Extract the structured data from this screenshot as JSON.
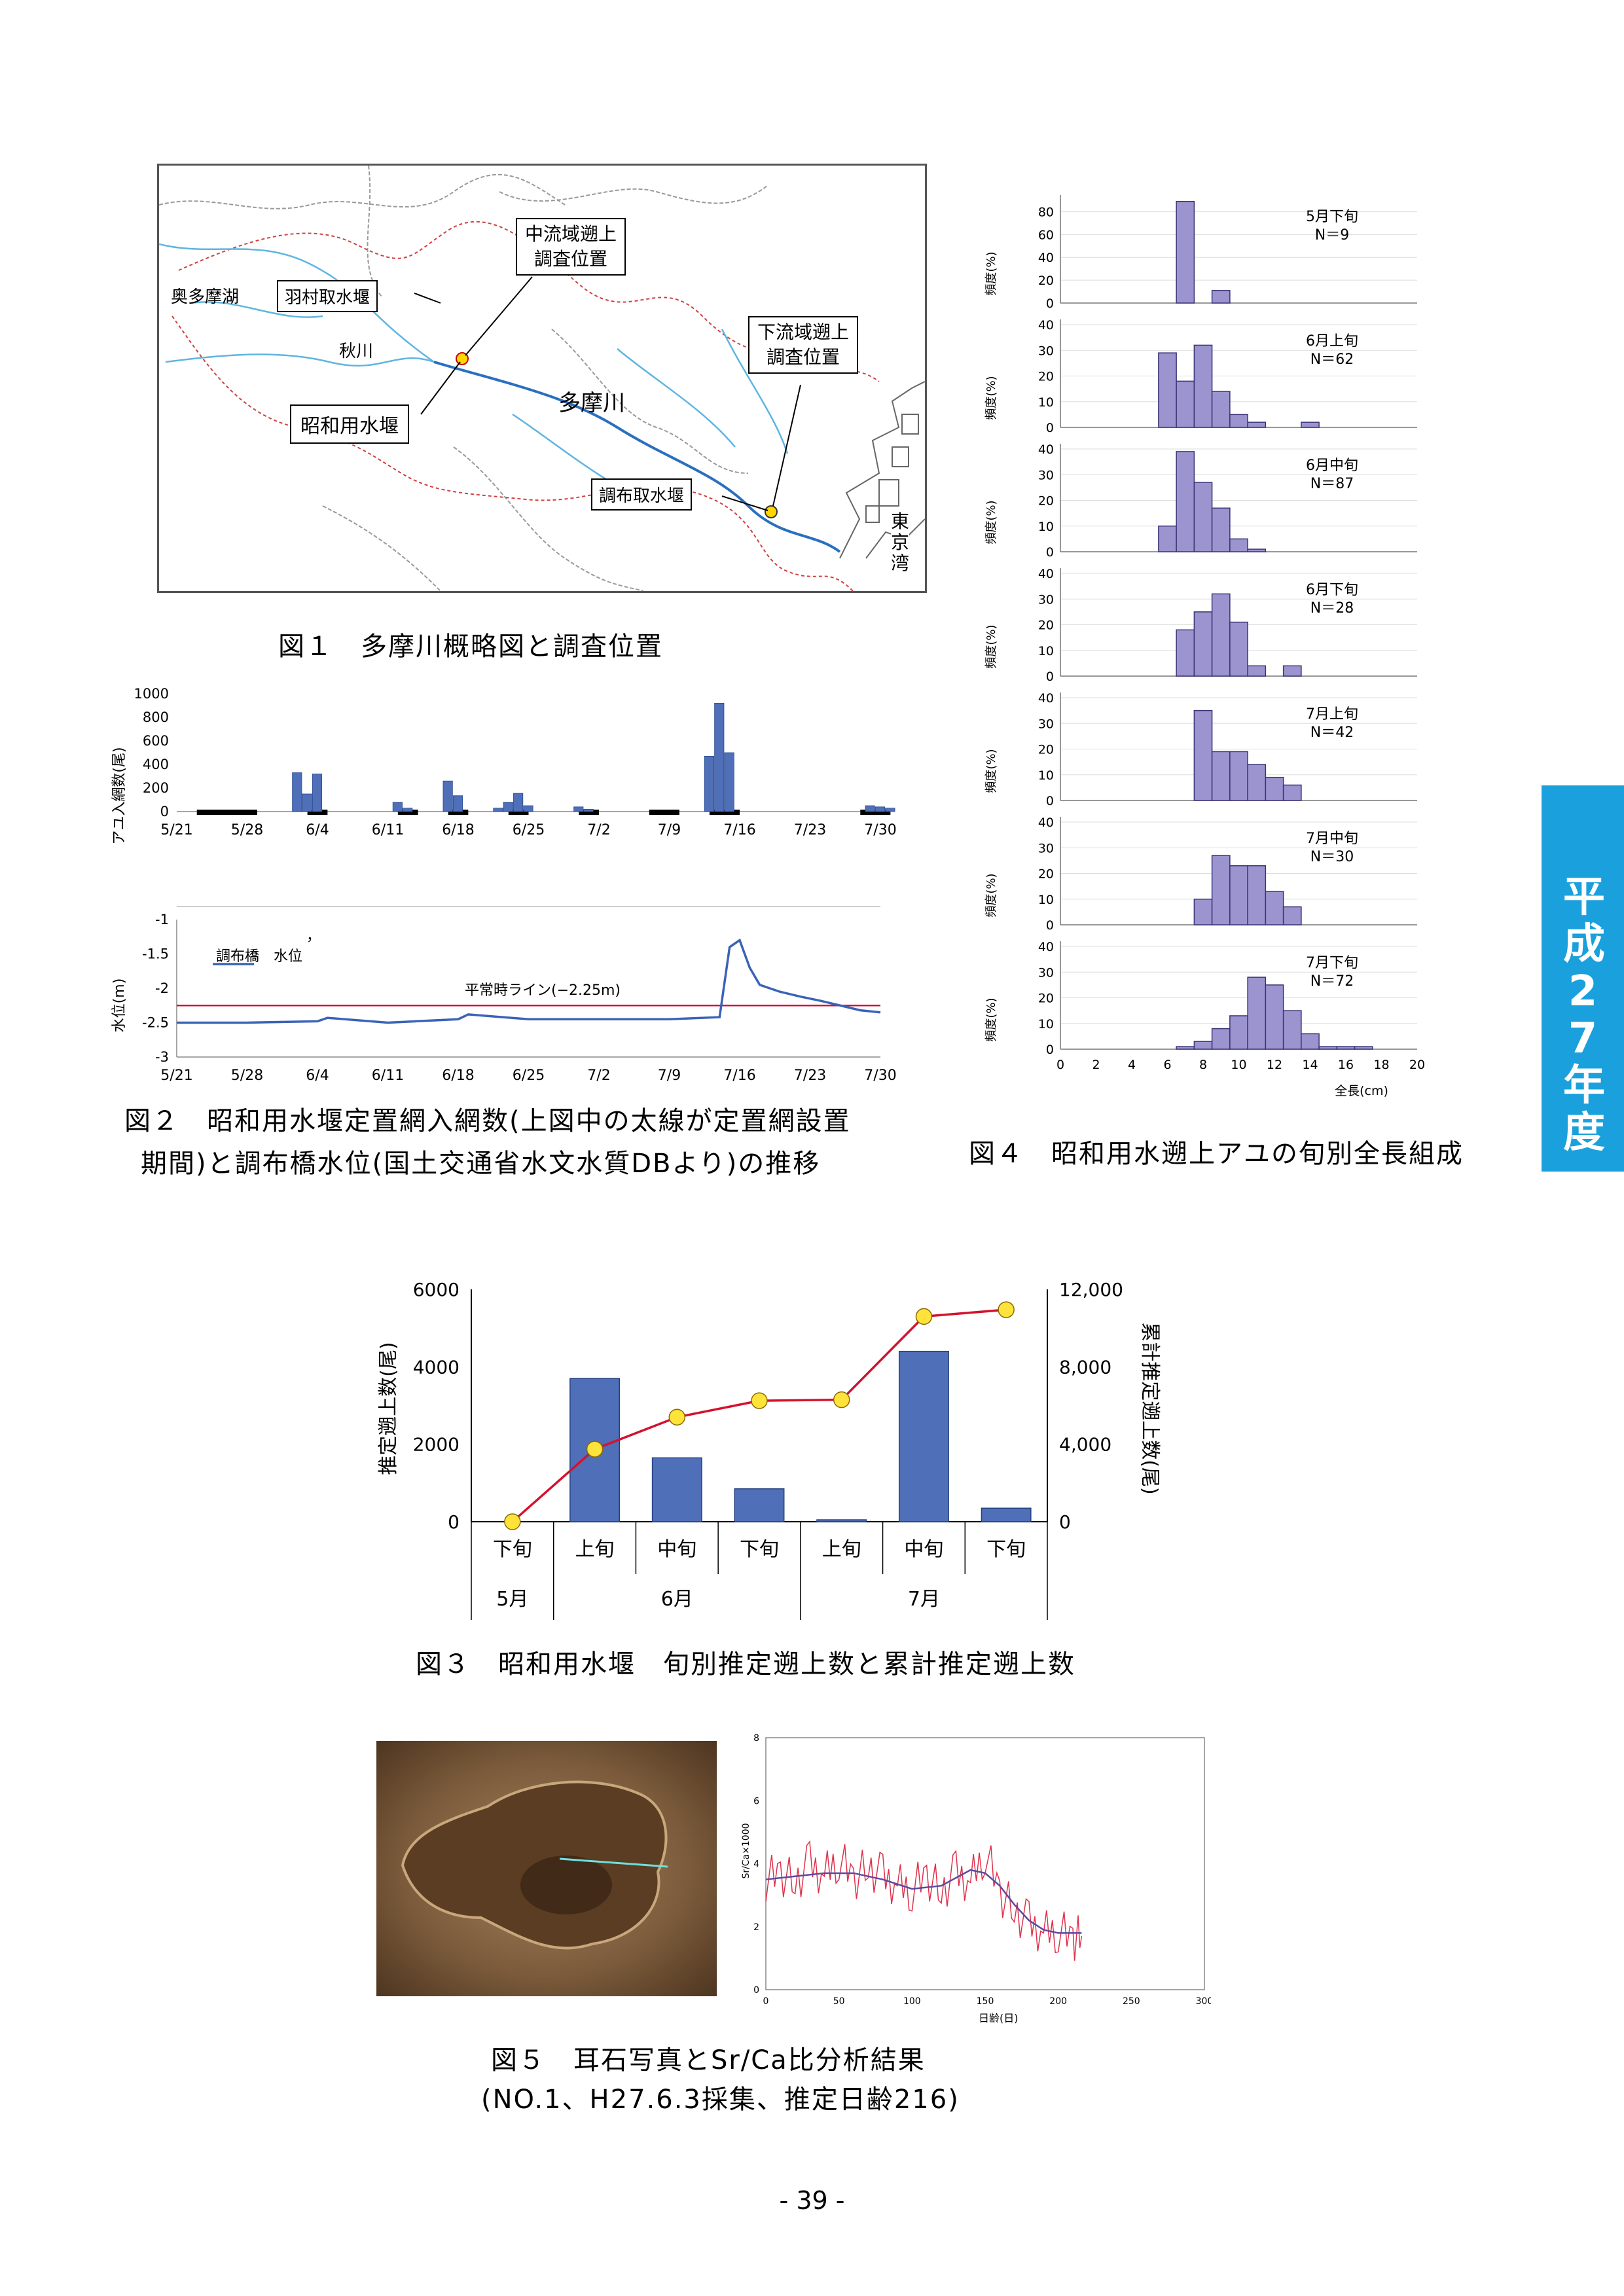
{
  "fig1": {
    "caption": "図１　多摩川概略図と調査位置",
    "labels": {
      "okutama": "奥多摩湖",
      "hamura": "羽村取水堰",
      "akigawa": "秋川",
      "chuuryuu": "中流域遡上",
      "chuuryuu2": "調査位置",
      "karyuu": "下流域遡上",
      "karyuu2": "調査位置",
      "showa": "昭和用水堰",
      "tamagawa": "多摩川",
      "chofu": "調布取水堰",
      "bay1": "東",
      "bay2": "京",
      "bay3": "湾"
    }
  },
  "fig2": {
    "caption_l1": "図２　昭和用水堰定置網入網数(上図中の太線が定置網設置",
    "caption_l2": "期間)と調布橋水位(国土交通省水文水質DBより)の推移",
    "top_ylabel": "アユ入網数(尾)",
    "bottom_ylabel": "水位(m)",
    "legend": "調布橋　水位",
    "normal_line": "平常時ライン(−2.25m)",
    "stray_mark": "，",
    "dates": [
      "5/21",
      "5/28",
      "6/4",
      "6/11",
      "6/18",
      "6/25",
      "7/2",
      "7/9",
      "7/16",
      "7/23",
      "7/30"
    ],
    "top_yticks": [
      "1000",
      "800",
      "600",
      "400",
      "200",
      "0"
    ],
    "bottom_yticks": [
      "-1",
      "-1.5",
      "-2",
      "-2.5",
      "-3"
    ]
  },
  "fig3": {
    "caption": "図３　昭和用水堰　旬別推定遡上数と累計推定遡上数",
    "ylabel_left": "推定遡上数(尾)",
    "ylabel_right": "累計推定遡上数(尾)",
    "left_ticks": [
      "6000",
      "4000",
      "2000",
      "0"
    ],
    "right_ticks": [
      "12,000",
      "8,000",
      "4,000",
      "0"
    ],
    "periods": [
      "下旬",
      "上旬",
      "中旬",
      "下旬",
      "上旬",
      "中旬",
      "下旬"
    ],
    "months": [
      "5月",
      "6月",
      "7月"
    ]
  },
  "fig4": {
    "caption": "図４　昭和用水遡上アユの旬別全長組成",
    "ylabel": "頻度(%)",
    "xlabel": "全長(cm)",
    "xticks": [
      "0",
      "2",
      "4",
      "6",
      "8",
      "10",
      "12",
      "14",
      "16",
      "18",
      "20"
    ],
    "panels": [
      {
        "title": "5月下旬",
        "n": "N＝9",
        "yticks": [
          "80",
          "60",
          "40",
          "20",
          "0"
        ]
      },
      {
        "title": "6月上旬",
        "n": "N＝62",
        "yticks": [
          "40",
          "30",
          "20",
          "10",
          "0"
        ]
      },
      {
        "title": "6月中旬",
        "n": "N＝87",
        "yticks": [
          "40",
          "30",
          "20",
          "10",
          "0"
        ]
      },
      {
        "title": "6月下旬",
        "n": "N＝28",
        "yticks": [
          "40",
          "30",
          "20",
          "10",
          "0"
        ]
      },
      {
        "title": "7月上旬",
        "n": "N＝42",
        "yticks": [
          "40",
          "30",
          "20",
          "10",
          "0"
        ]
      },
      {
        "title": "7月中旬",
        "n": "N＝30",
        "yticks": [
          "40",
          "30",
          "20",
          "10",
          "0"
        ]
      },
      {
        "title": "7月下旬",
        "n": "N＝72",
        "yticks": [
          "40",
          "30",
          "20",
          "10",
          "0"
        ]
      }
    ]
  },
  "fig5": {
    "caption_l1": "図５　耳石写真とSr/Ca比分析結果",
    "caption_l2": "(NO.1、H27.6.3採集、推定日齢216)",
    "ylabel": "Sr/Ca×1000",
    "xlabel": "日齢(日)",
    "xticks": [
      "0",
      "50",
      "100",
      "150",
      "200",
      "250",
      "300"
    ],
    "yticks": [
      "8",
      "6",
      "4",
      "2",
      "0"
    ]
  },
  "side_tab": "平成27年度",
  "page_number": "- 39 -",
  "chart_data": [
    {
      "type": "bar",
      "id": "fig2-top",
      "ylabel": "アユ入網数(尾)",
      "ylim": [
        0,
        1000
      ],
      "x_start": "5/21",
      "categories": [
        "6/2",
        "6/3",
        "6/4",
        "6/12",
        "6/13",
        "6/17",
        "6/18",
        "6/22",
        "6/23",
        "6/24",
        "6/25",
        "6/30",
        "7/1",
        "7/13",
        "7/14",
        "7/15",
        "7/29",
        "7/30",
        "7/31"
      ],
      "values": [
        330,
        150,
        320,
        80,
        30,
        260,
        135,
        30,
        80,
        155,
        50,
        40,
        20,
        470,
        920,
        500,
        50,
        40,
        30
      ],
      "net_periods": [
        [
          "5/23",
          "5/29"
        ],
        [
          "6/3",
          "6/5"
        ],
        [
          "6/12",
          "6/14"
        ],
        [
          "6/17",
          "6/19"
        ],
        [
          "6/23",
          "6/25"
        ],
        [
          "6/30",
          "7/2"
        ],
        [
          "7/7",
          "7/10"
        ],
        [
          "7/13",
          "7/16"
        ],
        [
          "7/28",
          "7/31"
        ]
      ]
    },
    {
      "type": "line",
      "id": "fig2-bottom",
      "ylabel": "水位(m)",
      "ylim": [
        -3,
        -1
      ],
      "series": [
        {
          "name": "調布橋　水位",
          "color": "#3a63b8",
          "x": [
            "5/21",
            "5/28",
            "6/4",
            "6/5",
            "6/11",
            "6/18",
            "6/19",
            "6/25",
            "7/2",
            "7/9",
            "7/14",
            "7/15",
            "7/16",
            "7/17",
            "7/18",
            "7/20",
            "7/22",
            "7/24",
            "7/26",
            "7/28",
            "7/30"
          ],
          "y": [
            -2.5,
            -2.5,
            -2.48,
            -2.43,
            -2.5,
            -2.45,
            -2.38,
            -2.45,
            -2.45,
            -2.45,
            -2.42,
            -1.4,
            -1.3,
            -1.7,
            -1.95,
            -2.05,
            -2.12,
            -2.18,
            -2.25,
            -2.32,
            -2.35
          ]
        }
      ],
      "reference_line": {
        "y": -2.25,
        "label": "平常時ライン(−2.25m)",
        "color": "#d0103a"
      }
    },
    {
      "type": "bar",
      "id": "fig3",
      "categories": [
        "5月下旬",
        "6月上旬",
        "6月中旬",
        "6月下旬",
        "7月上旬",
        "7月中旬",
        "7月下旬"
      ],
      "series": [
        {
          "name": "推定遡上数",
          "axis": "left",
          "values": [
            0,
            3700,
            1650,
            850,
            50,
            4400,
            350
          ]
        },
        {
          "name": "累計推定遡上数",
          "axis": "right",
          "type": "line",
          "values": [
            0,
            3750,
            5400,
            6250,
            6300,
            10600,
            10950
          ]
        }
      ],
      "ylim_left": [
        0,
        6000
      ],
      "ylim_right": [
        0,
        12000
      ]
    },
    {
      "type": "bar",
      "id": "fig4",
      "xlabel": "全長(cm)",
      "x_bins": [
        6,
        7,
        8,
        9,
        10,
        11,
        12,
        13,
        14,
        15,
        16,
        17
      ],
      "bin_width": 1,
      "panels": [
        {
          "title": "5月下旬",
          "n": 9,
          "ylim": [
            0,
            90
          ],
          "values": [
            0,
            89,
            0,
            11,
            0,
            0,
            0,
            0,
            0,
            0,
            0,
            0
          ]
        },
        {
          "title": "6月上旬",
          "n": 62,
          "ylim": [
            0,
            40
          ],
          "values": [
            29,
            18,
            32,
            14,
            5,
            2,
            0,
            0,
            2,
            0,
            0,
            0
          ]
        },
        {
          "title": "6月中旬",
          "n": 87,
          "ylim": [
            0,
            40
          ],
          "values": [
            10,
            39,
            27,
            17,
            5,
            1,
            0,
            0,
            0,
            0,
            0,
            0
          ]
        },
        {
          "title": "6月下旬",
          "n": 28,
          "ylim": [
            0,
            40
          ],
          "values": [
            0,
            18,
            25,
            32,
            21,
            4,
            0,
            4,
            0,
            0,
            0,
            0
          ]
        },
        {
          "title": "7月上旬",
          "n": 42,
          "ylim": [
            0,
            40
          ],
          "values": [
            0,
            0,
            35,
            19,
            19,
            14,
            9,
            6,
            0,
            0,
            0,
            0
          ]
        },
        {
          "title": "7月中旬",
          "n": 30,
          "ylim": [
            0,
            40
          ],
          "values": [
            0,
            0,
            10,
            27,
            23,
            23,
            13,
            7,
            0,
            0,
            0,
            0
          ]
        },
        {
          "title": "7月下旬",
          "n": 72,
          "ylim": [
            0,
            40
          ],
          "values": [
            0,
            1,
            3,
            8,
            13,
            28,
            25,
            15,
            6,
            1,
            1,
            1
          ]
        }
      ]
    },
    {
      "type": "line",
      "id": "fig5",
      "xlabel": "日齢(日)",
      "ylabel": "Sr/Ca×1000",
      "xlim": [
        0,
        300
      ],
      "ylim": [
        0,
        8
      ],
      "series": [
        {
          "name": "raw",
          "color": "#e0304a",
          "x": [
            0,
            10,
            20,
            30,
            40,
            50,
            60,
            70,
            80,
            90,
            100,
            110,
            120,
            130,
            140,
            150,
            160,
            170,
            180,
            190,
            200,
            210,
            216
          ],
          "y": [
            3.5,
            3.7,
            3.4,
            4.0,
            3.6,
            4.2,
            3.5,
            3.9,
            3.6,
            3.3,
            3.2,
            3.6,
            3.1,
            3.7,
            3.4,
            4.4,
            3.1,
            2.5,
            2.1,
            1.8,
            1.9,
            1.6,
            1.7
          ]
        },
        {
          "name": "smooth",
          "color": "#5a4aa0",
          "x": [
            0,
            20,
            40,
            60,
            80,
            100,
            120,
            140,
            150,
            160,
            170,
            180,
            190,
            200,
            216
          ],
          "y": [
            3.5,
            3.6,
            3.7,
            3.7,
            3.5,
            3.2,
            3.3,
            3.8,
            3.7,
            3.3,
            2.7,
            2.2,
            1.9,
            1.8,
            1.8
          ]
        }
      ]
    }
  ]
}
